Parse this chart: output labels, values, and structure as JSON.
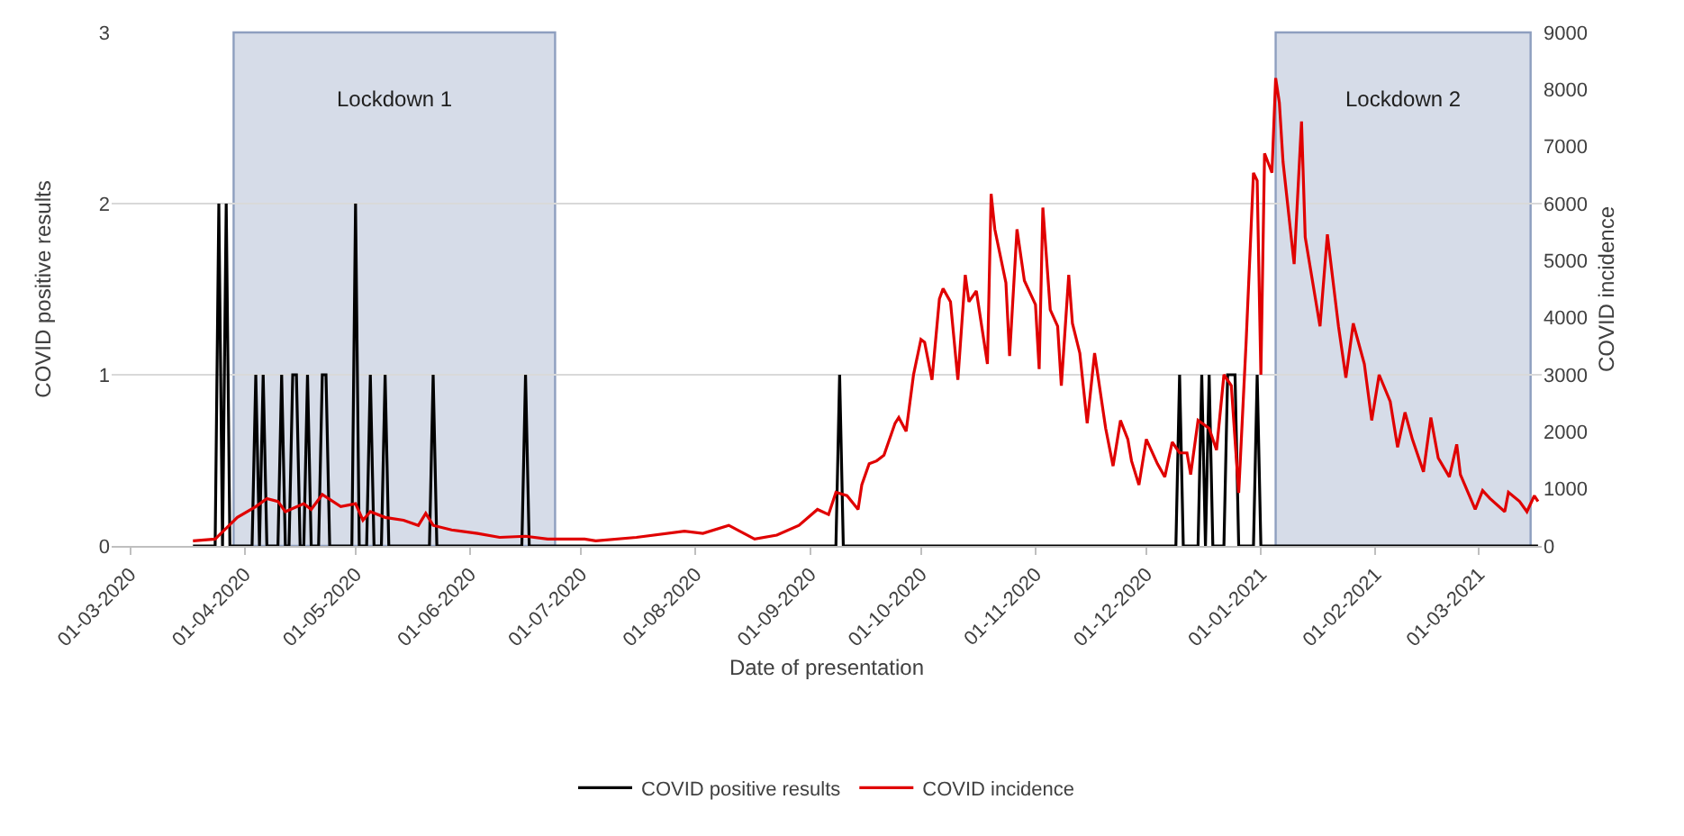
{
  "chart_data": {
    "type": "line",
    "xlabel": "Date of presentation",
    "ylabel": "COVID positive results",
    "y2label": "COVID incidence",
    "xlim": [
      "2020-02-25",
      "2021-03-18"
    ],
    "xticks": [
      {
        "value": "2020-03-01",
        "label": "01-03-2020"
      },
      {
        "value": "2020-04-01",
        "label": "01-04-2020"
      },
      {
        "value": "2020-05-01",
        "label": "01-05-2020"
      },
      {
        "value": "2020-06-01",
        "label": "01-06-2020"
      },
      {
        "value": "2020-07-01",
        "label": "01-07-2020"
      },
      {
        "value": "2020-08-01",
        "label": "01-08-2020"
      },
      {
        "value": "2020-09-01",
        "label": "01-09-2020"
      },
      {
        "value": "2020-10-01",
        "label": "01-10-2020"
      },
      {
        "value": "2020-11-01",
        "label": "01-11-2020"
      },
      {
        "value": "2020-12-01",
        "label": "01-12-2020"
      },
      {
        "value": "2021-01-01",
        "label": "01-01-2021"
      },
      {
        "value": "2021-02-01",
        "label": "01-02-2021"
      },
      {
        "value": "2021-03-01",
        "label": "01-03-2021"
      }
    ],
    "ylim": [
      0,
      3
    ],
    "yticks": [
      0,
      1,
      2,
      3
    ],
    "y2lim": [
      0,
      9000
    ],
    "y2ticks": [
      0,
      1000,
      2000,
      3000,
      4000,
      5000,
      6000,
      7000,
      8000,
      9000
    ],
    "grid": "y",
    "legend": "bottom",
    "marker": "none",
    "line_style": "solid",
    "bands": [
      {
        "axis": "x",
        "from": "2020-03-29",
        "to": "2020-06-24",
        "label": "Lockdown 1",
        "color": "#d6dce8"
      },
      {
        "axis": "x",
        "from": "2021-01-05",
        "to": "2021-03-15",
        "label": "Lockdown 2",
        "color": "#d6dce8"
      }
    ],
    "series": [
      {
        "name": "COVID positive results",
        "color": "#000000",
        "x": [
          "2020-03-18",
          "2020-03-24",
          "2020-03-25",
          "2020-03-26",
          "2020-03-27",
          "2020-03-28",
          "2020-04-03",
          "2020-04-04",
          "2020-04-05",
          "2020-04-06",
          "2020-04-07",
          "2020-04-10",
          "2020-04-11",
          "2020-04-12",
          "2020-04-13",
          "2020-04-14",
          "2020-04-15",
          "2020-04-16",
          "2020-04-17",
          "2020-04-18",
          "2020-04-19",
          "2020-04-21",
          "2020-04-22",
          "2020-04-23",
          "2020-04-24",
          "2020-04-30",
          "2020-05-01",
          "2020-05-02",
          "2020-05-04",
          "2020-05-05",
          "2020-05-06",
          "2020-05-08",
          "2020-05-09",
          "2020-05-10",
          "2020-05-21",
          "2020-05-22",
          "2020-05-23",
          "2020-06-15",
          "2020-06-16",
          "2020-06-17",
          "2020-09-08",
          "2020-09-09",
          "2020-09-10",
          "2020-12-09",
          "2020-12-10",
          "2020-12-11",
          "2020-12-15",
          "2020-12-16",
          "2020-12-17",
          "2020-12-18",
          "2020-12-19",
          "2020-12-22",
          "2020-12-23",
          "2020-12-24",
          "2020-12-25",
          "2020-12-26",
          "2020-12-30",
          "2020-12-31",
          "2021-01-01",
          "2021-03-17"
        ],
        "values": [
          0,
          0,
          2,
          0,
          2,
          0,
          0,
          1,
          0,
          1,
          0,
          0,
          1,
          0,
          0,
          1,
          1,
          0,
          0,
          1,
          0,
          0,
          1,
          1,
          0,
          0,
          2,
          0,
          0,
          1,
          0,
          0,
          1,
          0,
          0,
          1,
          0,
          0,
          1,
          0,
          0,
          1,
          0,
          0,
          1,
          0,
          0,
          1,
          0,
          1,
          0,
          0,
          1,
          1,
          1,
          0,
          0,
          1,
          0,
          0
        ]
      },
      {
        "name": "COVID incidence",
        "color": "#e00000",
        "axis": "y2",
        "x": [
          "2020-03-18",
          "2020-03-24",
          "2020-03-27",
          "2020-03-30",
          "2020-04-04",
          "2020-04-07",
          "2020-04-10",
          "2020-04-12",
          "2020-04-17",
          "2020-04-19",
          "2020-04-22",
          "2020-04-27",
          "2020-05-01",
          "2020-05-03",
          "2020-05-05",
          "2020-05-09",
          "2020-05-14",
          "2020-05-18",
          "2020-05-20",
          "2020-05-22",
          "2020-05-27",
          "2020-06-03",
          "2020-06-09",
          "2020-06-16",
          "2020-06-22",
          "2020-07-02",
          "2020-07-05",
          "2020-07-16",
          "2020-07-29",
          "2020-08-03",
          "2020-08-10",
          "2020-08-17",
          "2020-08-23",
          "2020-08-29",
          "2020-09-03",
          "2020-09-06",
          "2020-09-08",
          "2020-09-11",
          "2020-09-14",
          "2020-09-15",
          "2020-09-17",
          "2020-09-19",
          "2020-09-21",
          "2020-09-24",
          "2020-09-25",
          "2020-09-27",
          "2020-09-29",
          "2020-10-01",
          "2020-10-02",
          "2020-10-04",
          "2020-10-06",
          "2020-10-07",
          "2020-10-09",
          "2020-10-11",
          "2020-10-13",
          "2020-10-14",
          "2020-10-16",
          "2020-10-19",
          "2020-10-20",
          "2020-10-21",
          "2020-10-24",
          "2020-10-25",
          "2020-10-27",
          "2020-10-29",
          "2020-11-01",
          "2020-11-02",
          "2020-11-03",
          "2020-11-05",
          "2020-11-07",
          "2020-11-08",
          "2020-11-10",
          "2020-11-11",
          "2020-11-13",
          "2020-11-15",
          "2020-11-17",
          "2020-11-20",
          "2020-11-22",
          "2020-11-24",
          "2020-11-26",
          "2020-11-27",
          "2020-11-29",
          "2020-12-01",
          "2020-12-04",
          "2020-12-06",
          "2020-12-08",
          "2020-12-10",
          "2020-12-12",
          "2020-12-13",
          "2020-12-15",
          "2020-12-18",
          "2020-12-20",
          "2020-12-22",
          "2020-12-24",
          "2020-12-26",
          "2020-12-28",
          "2020-12-30",
          "2020-12-31",
          "2021-01-01",
          "2021-01-02",
          "2021-01-04",
          "2021-01-05",
          "2021-01-06",
          "2021-01-07",
          "2021-01-10",
          "2021-01-12",
          "2021-01-13",
          "2021-01-17",
          "2021-01-19",
          "2021-01-22",
          "2021-01-24",
          "2021-01-26",
          "2021-01-29",
          "2021-01-31",
          "2021-02-02",
          "2021-02-05",
          "2021-02-07",
          "2021-02-09",
          "2021-02-11",
          "2021-02-14",
          "2021-02-16",
          "2021-02-18",
          "2021-02-21",
          "2021-02-23",
          "2021-02-24",
          "2021-02-28",
          "2021-03-02",
          "2021-03-04",
          "2021-03-08",
          "2021-03-09",
          "2021-03-12",
          "2021-03-14",
          "2021-03-16",
          "2021-03-17"
        ],
        "values": [
          90,
          120,
          310,
          500,
          690,
          830,
          780,
          600,
          740,
          640,
          900,
          690,
          740,
          450,
          600,
          500,
          450,
          360,
          570,
          360,
          280,
          220,
          150,
          170,
          120,
          120,
          90,
          150,
          260,
          220,
          360,
          120,
          190,
          360,
          640,
          550,
          940,
          880,
          640,
          1070,
          1440,
          1490,
          1590,
          2150,
          2250,
          2010,
          3000,
          3620,
          3570,
          2910,
          4330,
          4510,
          4280,
          2910,
          4750,
          4280,
          4470,
          3190,
          6170,
          5550,
          4610,
          3330,
          5550,
          4650,
          4230,
          3100,
          5930,
          4140,
          3850,
          2810,
          4750,
          3900,
          3380,
          2150,
          3380,
          2060,
          1400,
          2200,
          1870,
          1490,
          1070,
          1870,
          1440,
          1210,
          1820,
          1630,
          1630,
          1250,
          2200,
          2060,
          1680,
          3000,
          2810,
          930,
          3570,
          6540,
          6400,
          3000,
          6880,
          6540,
          8200,
          7770,
          6730,
          4940,
          7440,
          5410,
          3850,
          5460,
          3850,
          2950,
          3900,
          3190,
          2200,
          3000,
          2530,
          1730,
          2340,
          1870,
          1300,
          2250,
          1540,
          1210,
          1780,
          1250,
          640,
          970,
          830,
          600,
          940,
          780,
          600,
          880,
          780
        ]
      }
    ]
  }
}
